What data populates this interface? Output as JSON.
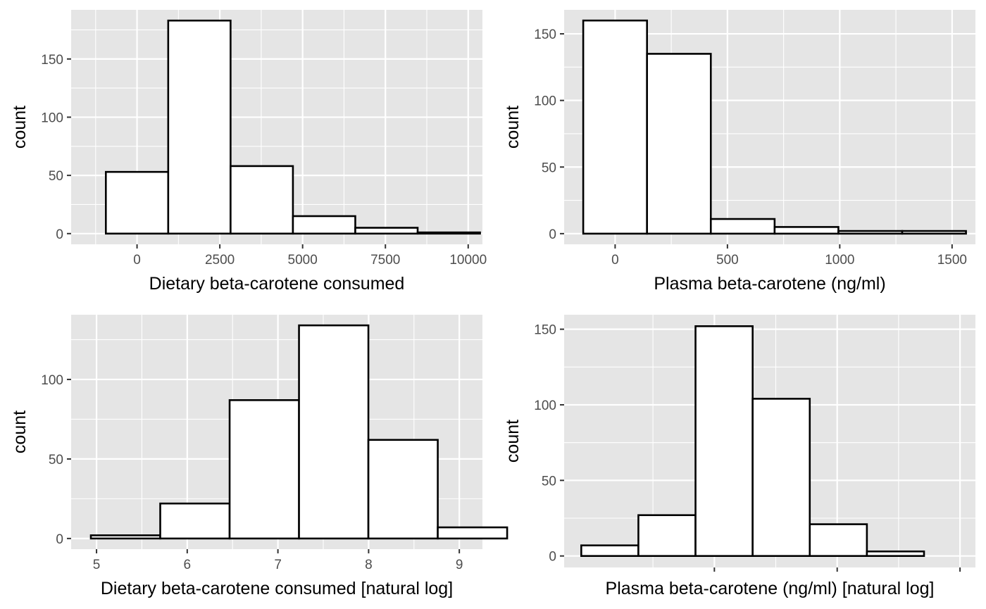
{
  "chart_data": [
    {
      "type": "bar",
      "subtype": "histogram",
      "xlabel": "Dietary beta-carotene consumed",
      "ylabel": "count",
      "bin_width": 1883,
      "bins": [
        {
          "center": 0,
          "count": 53
        },
        {
          "center": 1883,
          "count": 183
        },
        {
          "center": 3766,
          "count": 58
        },
        {
          "center": 5649,
          "count": 15
        },
        {
          "center": 7532,
          "count": 5
        },
        {
          "center": 9415,
          "count": 1
        }
      ],
      "xlim": [
        -1990,
        10430
      ],
      "ylim": [
        -9.2,
        192.2
      ],
      "x_ticks": [
        {
          "value": 0,
          "label": "0"
        },
        {
          "value": 2500,
          "label": "2500"
        },
        {
          "value": 5000,
          "label": "5000"
        },
        {
          "value": 7500,
          "label": "7500"
        },
        {
          "value": 10000,
          "label": "10000"
        }
      ],
      "y_ticks": [
        {
          "value": 0,
          "label": "0"
        },
        {
          "value": 50,
          "label": "50"
        },
        {
          "value": 100,
          "label": "100"
        },
        {
          "value": 150,
          "label": "150"
        }
      ],
      "grid": true,
      "legend": "none"
    },
    {
      "type": "bar",
      "subtype": "histogram",
      "xlabel": "Plasma beta-carotene (ng/ml)",
      "ylabel": "count",
      "bin_width": 284,
      "bins": [
        {
          "center": 0,
          "count": 160
        },
        {
          "center": 284,
          "count": 135
        },
        {
          "center": 568,
          "count": 11
        },
        {
          "center": 852,
          "count": 5
        },
        {
          "center": 1136,
          "count": 2
        },
        {
          "center": 1420,
          "count": 2
        }
      ],
      "xlim": [
        -227,
        1604
      ],
      "ylim": [
        -8,
        168
      ],
      "x_ticks": [
        {
          "value": 0,
          "label": "0"
        },
        {
          "value": 500,
          "label": "500"
        },
        {
          "value": 1000,
          "label": "1000"
        },
        {
          "value": 1500,
          "label": "1500"
        }
      ],
      "y_ticks": [
        {
          "value": 0,
          "label": "0"
        },
        {
          "value": 50,
          "label": "50"
        },
        {
          "value": 100,
          "label": "100"
        },
        {
          "value": 150,
          "label": "150"
        }
      ],
      "grid": true,
      "legend": "none"
    },
    {
      "type": "bar",
      "subtype": "histogram",
      "xlabel": "Dietary beta-carotene consumed [natural log]",
      "ylabel": "count",
      "bin_width": 0.765,
      "bins": [
        {
          "center": 5.32,
          "count": 2
        },
        {
          "center": 6.085,
          "count": 22
        },
        {
          "center": 6.85,
          "count": 87
        },
        {
          "center": 7.615,
          "count": 134
        },
        {
          "center": 8.38,
          "count": 62
        },
        {
          "center": 9.145,
          "count": 7
        }
      ],
      "xlim": [
        4.72,
        9.255
      ],
      "ylim": [
        -6.7,
        140.7
      ],
      "x_ticks": [
        {
          "value": 5,
          "label": "5"
        },
        {
          "value": 6,
          "label": "6"
        },
        {
          "value": 7,
          "label": "7"
        },
        {
          "value": 8,
          "label": "8"
        },
        {
          "value": 9,
          "label": "9"
        }
      ],
      "y_ticks": [
        {
          "value": 0,
          "label": "0"
        },
        {
          "value": 50,
          "label": "50"
        },
        {
          "value": 100,
          "label": "100"
        }
      ],
      "grid": true,
      "legend": "none"
    },
    {
      "type": "bar",
      "subtype": "histogram",
      "xlabel": "Plasma beta-carotene (ng/ml) [natural log]",
      "ylabel": "count",
      "bin_width": 1,
      "bins": [
        {
          "center": 0,
          "count": 7
        },
        {
          "center": 1,
          "count": 27
        },
        {
          "center": 2,
          "count": 152
        },
        {
          "center": 3,
          "count": 104
        },
        {
          "center": 4,
          "count": 21
        },
        {
          "center": 5,
          "count": 3
        }
      ],
      "xlim": [
        -0.8,
        6.4
      ],
      "ylim": [
        -7.6,
        159.6
      ],
      "x_ticks": [
        {
          "value": 1.83,
          "label": ""
        },
        {
          "value": 3.98,
          "label": ""
        },
        {
          "value": 6.13,
          "label": ""
        }
      ],
      "y_ticks": [
        {
          "value": 0,
          "label": "0"
        },
        {
          "value": 50,
          "label": "50"
        },
        {
          "value": 100,
          "label": "100"
        },
        {
          "value": 150,
          "label": "150"
        }
      ],
      "grid": true,
      "legend": "none"
    }
  ]
}
